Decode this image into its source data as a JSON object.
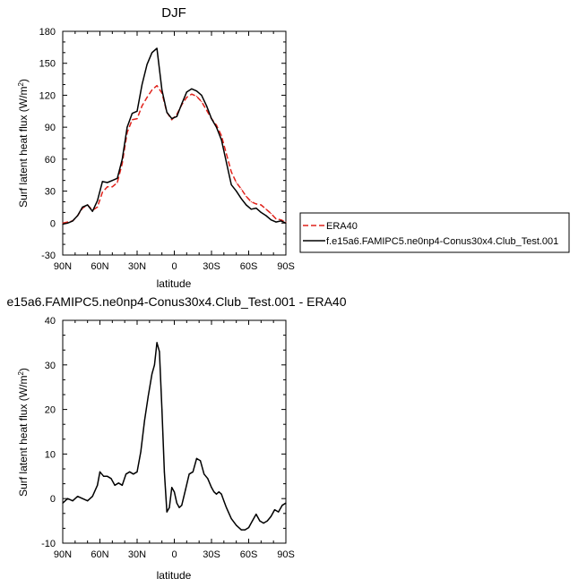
{
  "chart_data": [
    {
      "type": "line",
      "title": "DJF",
      "xlabel": "latitude",
      "ylabel_main": "Surf latent heat flux (W/m",
      "ylabel_sup": "2",
      "ylabel_close": ")",
      "xlim": [
        90,
        -90
      ],
      "ylim": [
        -30,
        180
      ],
      "x_ticks": [
        90,
        60,
        30,
        0,
        -30,
        -60,
        -90
      ],
      "x_tick_labels": [
        "90N",
        "60N",
        "30N",
        "0",
        "30S",
        "60S",
        "90S"
      ],
      "y_ticks": [
        -30,
        0,
        30,
        60,
        90,
        120,
        150,
        180
      ],
      "y_tick_labels": [
        "-30",
        "0",
        "30",
        "60",
        "90",
        "120",
        "150",
        "180"
      ],
      "legend_position": "right",
      "series": [
        {
          "name": "ERA40",
          "color": "#e0221b",
          "dash": "dashed",
          "x": [
            90,
            86,
            82,
            78,
            74,
            70,
            66,
            62,
            58,
            54,
            50,
            46,
            42,
            38,
            34,
            30,
            26,
            22,
            18,
            14,
            10,
            6,
            2,
            -2,
            -6,
            -10,
            -14,
            -18,
            -22,
            -26,
            -30,
            -34,
            -38,
            -42,
            -46,
            -50,
            -54,
            -58,
            -62,
            -66,
            -70,
            -74,
            -78,
            -82,
            -86,
            -90
          ],
          "values": [
            0,
            1,
            2,
            7,
            14,
            17,
            12,
            15,
            29,
            34,
            34,
            38,
            56,
            85,
            97,
            98,
            110,
            118,
            125,
            129,
            122,
            104,
            97,
            102,
            111,
            118,
            121,
            119,
            114,
            106,
            98,
            92,
            82,
            65,
            48,
            38,
            32,
            25,
            20,
            18,
            17,
            13,
            9,
            4,
            3,
            1
          ]
        },
        {
          "name": "f.e15a6.FAMIPC5.ne0np4-Conus30x4.Club_Test.001",
          "color": "#000000",
          "dash": "solid",
          "x": [
            90,
            86,
            82,
            78,
            74,
            70,
            66,
            62,
            58,
            54,
            50,
            46,
            42,
            38,
            34,
            30,
            26,
            22,
            18,
            14,
            10,
            6,
            2,
            -2,
            -6,
            -10,
            -14,
            -18,
            -22,
            -26,
            -30,
            -34,
            -38,
            -42,
            -46,
            -50,
            -54,
            -58,
            -62,
            -66,
            -70,
            -74,
            -78,
            -82,
            -86,
            -90
          ],
          "values": [
            -1,
            0,
            2,
            7,
            15,
            17,
            11,
            21,
            39,
            38,
            40,
            42,
            60,
            90,
            103,
            105,
            130,
            149,
            160,
            164,
            125,
            104,
            98,
            100,
            112,
            123,
            126,
            124,
            120,
            110,
            98,
            90,
            78,
            57,
            36,
            30,
            23,
            17,
            13,
            14,
            10,
            7,
            3,
            1,
            2,
            0
          ]
        }
      ]
    },
    {
      "type": "line",
      "title": "e15a6.FAMIPC5.ne0np4-Conus30x4.Club_Test.001 - ERA40",
      "xlabel": "latitude",
      "ylabel_main": "Surf latent heat flux (W/m",
      "ylabel_sup": "2",
      "ylabel_close": ")",
      "xlim": [
        90,
        -90
      ],
      "ylim": [
        -10,
        40
      ],
      "x_ticks": [
        90,
        60,
        30,
        0,
        -30,
        -60,
        -90
      ],
      "x_tick_labels": [
        "90N",
        "60N",
        "30N",
        "0",
        "30S",
        "60S",
        "90S"
      ],
      "y_ticks": [
        -10,
        0,
        10,
        20,
        30,
        40
      ],
      "y_tick_labels": [
        "-10",
        "0",
        "10",
        "20",
        "30",
        "40"
      ],
      "series": [
        {
          "color": "#000000",
          "dash": "solid",
          "x": [
            90,
            86,
            82,
            78,
            74,
            70,
            66,
            62,
            60,
            57,
            54,
            51,
            48,
            45,
            42,
            39,
            36,
            33,
            30,
            27,
            24,
            21,
            18,
            16,
            14,
            12,
            10,
            8,
            6,
            4,
            2,
            0,
            -2,
            -4,
            -6,
            -9,
            -12,
            -15,
            -18,
            -21,
            -24,
            -27,
            -30,
            -32,
            -34,
            -36,
            -38,
            -40,
            -42,
            -46,
            -50,
            -54,
            -57,
            -60,
            -63,
            -66,
            -69,
            -72,
            -75,
            -78,
            -81,
            -84,
            -87,
            -90
          ],
          "values": [
            -1,
            0,
            -0.5,
            0.5,
            0,
            -0.5,
            0.5,
            3,
            6,
            5,
            5,
            4.5,
            3,
            3.5,
            3,
            5.5,
            6,
            5.5,
            6,
            10.5,
            17.5,
            23,
            28,
            30,
            35,
            33,
            20,
            6,
            -3,
            -2,
            2.5,
            1.5,
            -1,
            -2,
            -1.5,
            2,
            5.5,
            6,
            9,
            8.5,
            5.5,
            4.5,
            2.5,
            1.5,
            1,
            1.5,
            1,
            -0.5,
            -2,
            -4.5,
            -6,
            -7,
            -7,
            -6.5,
            -5,
            -3.5,
            -5,
            -5.5,
            -5,
            -4,
            -2.5,
            -3,
            -1.5,
            -1
          ]
        }
      ]
    }
  ]
}
